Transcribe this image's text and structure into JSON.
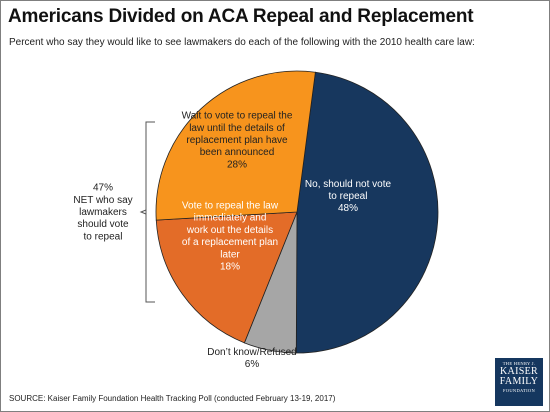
{
  "chart_data": {
    "type": "pie",
    "title": "Americans Divided on ACA Repeal and Replacement",
    "subtitle": "Percent who say they would like to see lawmakers do each of the following with the 2010 health care law:",
    "slices": [
      {
        "label_lines": [
          "No, should not vote",
          "to repeal",
          "48%"
        ],
        "value": 48,
        "color": "#17375e"
      },
      {
        "label_lines": [
          "Don’t know/Refused",
          "6%"
        ],
        "value": 6,
        "color": "#a6a6a6"
      },
      {
        "label_lines": [
          "Vote to repeal the law",
          "immediately and",
          "work out the details",
          "of a replacement plan",
          "later",
          "18%"
        ],
        "value": 18,
        "color": "#e36c28"
      },
      {
        "label_lines": [
          "Wait to vote to repeal the",
          "law until the details of",
          "replacement plan have",
          "been announced",
          "28%"
        ],
        "value": 28,
        "color": "#f7941d"
      }
    ],
    "net_annotation": {
      "lines": [
        "47%",
        "NET who say",
        "lawmakers",
        "should vote",
        "to repeal"
      ]
    }
  },
  "source": "SOURCE: Kaiser Family Foundation Health Tracking Poll (conducted February 13-19, 2017)",
  "logo": {
    "line1": "THE HENRY J.",
    "line2": "KAISER",
    "line3": "FAMILY",
    "line4": "FOUNDATION"
  }
}
